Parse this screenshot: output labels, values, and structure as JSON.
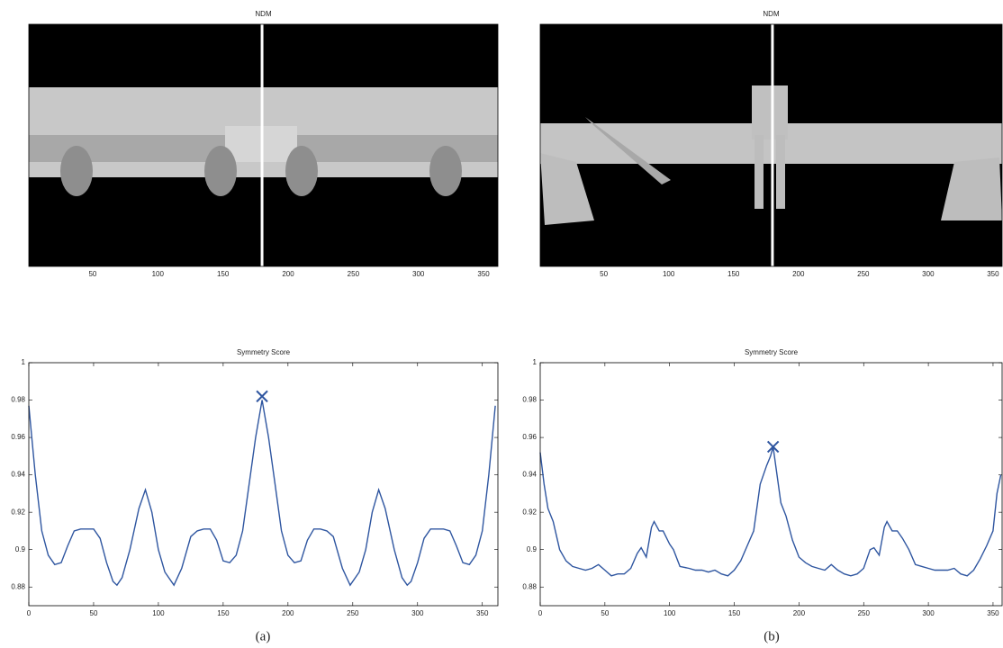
{
  "chart_data": [
    {
      "type": "image",
      "title": "NDM",
      "xlim": [
        1,
        361
      ],
      "xticks": [
        50,
        100,
        150,
        200,
        250,
        300,
        350
      ],
      "vline": 180
    },
    {
      "type": "image",
      "title": "NDM",
      "xlim": [
        1,
        357
      ],
      "xticks": [
        50,
        100,
        150,
        200,
        250,
        300,
        350
      ],
      "vline": 180
    },
    {
      "type": "line",
      "title": "Symmetry Score",
      "caption": "(a)",
      "color": "#2f56a0",
      "xlim": [
        0,
        362
      ],
      "xticks": [
        0,
        50,
        100,
        150,
        200,
        250,
        300,
        350
      ],
      "ylim": [
        0.87,
        1
      ],
      "yticks": [
        0.88,
        0.9,
        0.92,
        0.94,
        0.96,
        0.98,
        1
      ],
      "x": [
        0,
        5,
        10,
        15,
        20,
        25,
        30,
        35,
        40,
        45,
        50,
        55,
        60,
        65,
        68,
        72,
        78,
        85,
        90,
        95,
        100,
        105,
        112,
        118,
        125,
        130,
        135,
        140,
        145,
        150,
        155,
        160,
        165,
        170,
        175,
        180,
        185,
        190,
        195,
        200,
        205,
        210,
        215,
        220,
        225,
        230,
        235,
        242,
        248,
        255,
        260,
        265,
        270,
        275,
        282,
        288,
        292,
        295,
        300,
        305,
        310,
        315,
        320,
        325,
        330,
        335,
        340,
        345,
        350,
        355,
        360
      ],
      "values": [
        0.977,
        0.94,
        0.91,
        0.897,
        0.892,
        0.893,
        0.902,
        0.91,
        0.911,
        0.911,
        0.911,
        0.906,
        0.893,
        0.883,
        0.881,
        0.885,
        0.9,
        0.922,
        0.932,
        0.92,
        0.9,
        0.888,
        0.881,
        0.89,
        0.907,
        0.91,
        0.911,
        0.911,
        0.905,
        0.894,
        0.893,
        0.897,
        0.91,
        0.935,
        0.96,
        0.98,
        0.96,
        0.935,
        0.91,
        0.897,
        0.893,
        0.894,
        0.905,
        0.911,
        0.911,
        0.91,
        0.907,
        0.89,
        0.881,
        0.888,
        0.9,
        0.92,
        0.932,
        0.922,
        0.9,
        0.885,
        0.881,
        0.883,
        0.893,
        0.906,
        0.911,
        0.911,
        0.911,
        0.91,
        0.902,
        0.893,
        0.892,
        0.897,
        0.91,
        0.94,
        0.977
      ],
      "marker": {
        "x": 180,
        "y": 0.982
      }
    },
    {
      "type": "line",
      "title": "Symmetry Score",
      "caption": "(b)",
      "color": "#2f56a0",
      "xlim": [
        0,
        357
      ],
      "xticks": [
        0,
        50,
        100,
        150,
        200,
        250,
        300,
        350
      ],
      "ylim": [
        0.87,
        1
      ],
      "yticks": [
        0.88,
        0.9,
        0.92,
        0.94,
        0.96,
        0.98,
        1
      ],
      "x": [
        0,
        3,
        6,
        10,
        15,
        20,
        25,
        30,
        35,
        40,
        45,
        50,
        55,
        60,
        65,
        70,
        75,
        78,
        82,
        86,
        88,
        92,
        95,
        100,
        103,
        108,
        115,
        120,
        125,
        130,
        135,
        140,
        145,
        150,
        155,
        160,
        165,
        170,
        175,
        178,
        180,
        183,
        186,
        190,
        195,
        200,
        205,
        210,
        215,
        220,
        225,
        230,
        235,
        240,
        245,
        250,
        255,
        258,
        262,
        266,
        268,
        272,
        276,
        280,
        285,
        290,
        295,
        300,
        305,
        310,
        315,
        320,
        325,
        330,
        335,
        340,
        345,
        350,
        353,
        356
      ],
      "values": [
        0.952,
        0.935,
        0.922,
        0.915,
        0.9,
        0.894,
        0.891,
        0.89,
        0.889,
        0.89,
        0.892,
        0.889,
        0.886,
        0.887,
        0.887,
        0.89,
        0.898,
        0.901,
        0.896,
        0.912,
        0.915,
        0.91,
        0.91,
        0.903,
        0.9,
        0.891,
        0.89,
        0.889,
        0.889,
        0.888,
        0.889,
        0.887,
        0.886,
        0.889,
        0.894,
        0.902,
        0.91,
        0.935,
        0.945,
        0.95,
        0.955,
        0.94,
        0.925,
        0.918,
        0.905,
        0.896,
        0.893,
        0.891,
        0.89,
        0.889,
        0.892,
        0.889,
        0.887,
        0.886,
        0.887,
        0.89,
        0.9,
        0.901,
        0.897,
        0.912,
        0.915,
        0.91,
        0.91,
        0.906,
        0.9,
        0.892,
        0.891,
        0.89,
        0.889,
        0.889,
        0.889,
        0.89,
        0.887,
        0.886,
        0.889,
        0.895,
        0.902,
        0.91,
        0.93,
        0.94
      ],
      "marker": {
        "x": 180,
        "y": 0.955
      }
    }
  ]
}
